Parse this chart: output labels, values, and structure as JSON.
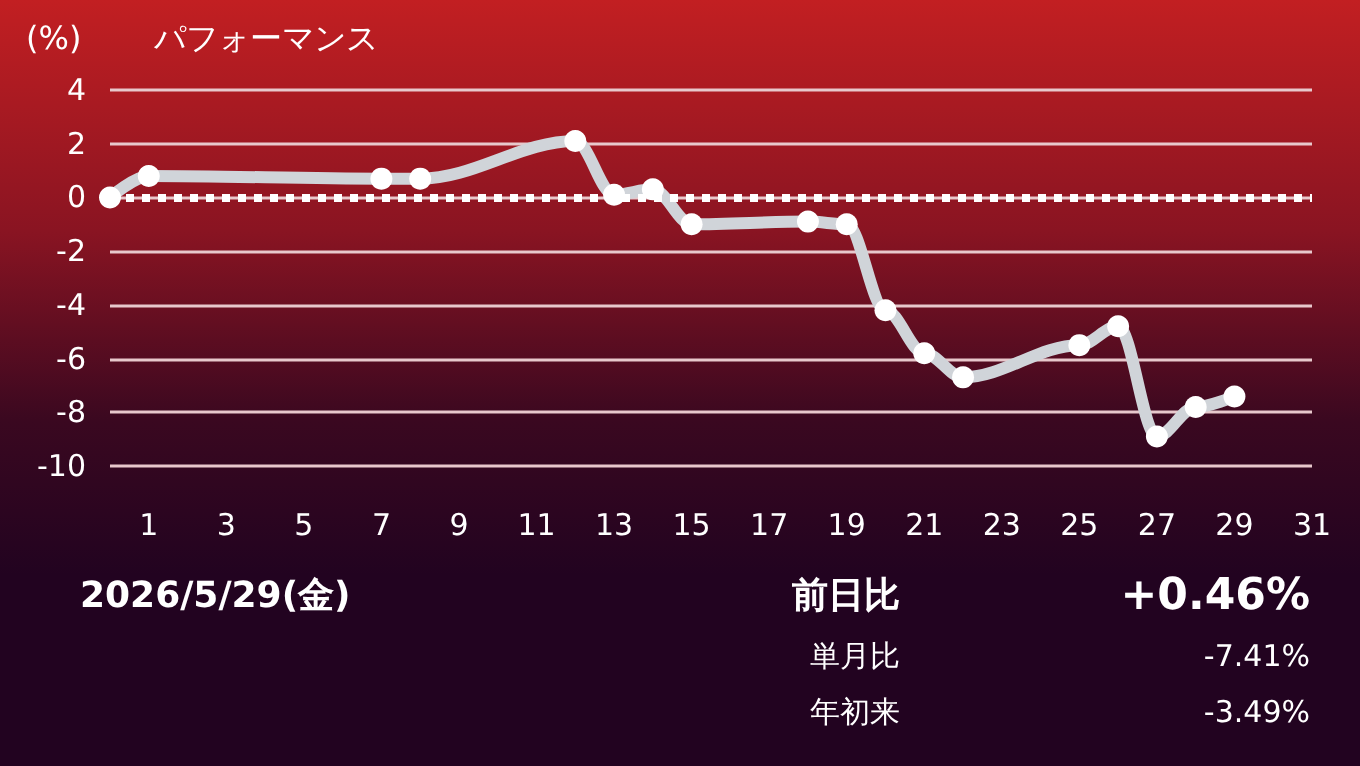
{
  "chart_data": {
    "type": "line",
    "title": "パフォーマンス",
    "ylabel": "(%)",
    "x": [
      0,
      1,
      7,
      8,
      12,
      13,
      14,
      15,
      18,
      19,
      20,
      21,
      22,
      25,
      26,
      27,
      28,
      29
    ],
    "series": [
      {
        "color": "#d0d4d9",
        "values": [
          0,
          0.8,
          0.7,
          0.7,
          2.1,
          0.1,
          0.3,
          -1.0,
          -0.9,
          -1.0,
          -4.2,
          -5.8,
          -6.7,
          -5.5,
          -4.8,
          -8.9,
          -7.8,
          -7.41
        ]
      }
    ],
    "xlim": [
      0,
      31
    ],
    "xticks": [
      1,
      3,
      5,
      7,
      9,
      11,
      13,
      15,
      17,
      19,
      21,
      23,
      25,
      27,
      29,
      31
    ],
    "ylim": [
      -10,
      4
    ],
    "yticks": [
      -10,
      -8,
      -6,
      -4,
      -2,
      0,
      2,
      4
    ],
    "ref_lines": [
      {
        "axis": "y",
        "value": 0,
        "color": "#ffffff",
        "line_style": "dotted"
      }
    ],
    "grid": "y",
    "marker": "circle",
    "line_style": "solid",
    "annotations": [
      "2026/5/29(金)",
      "前日比",
      "+0.46%",
      "単月比",
      "-7.41%",
      "年初来",
      "-3.49%"
    ]
  }
}
